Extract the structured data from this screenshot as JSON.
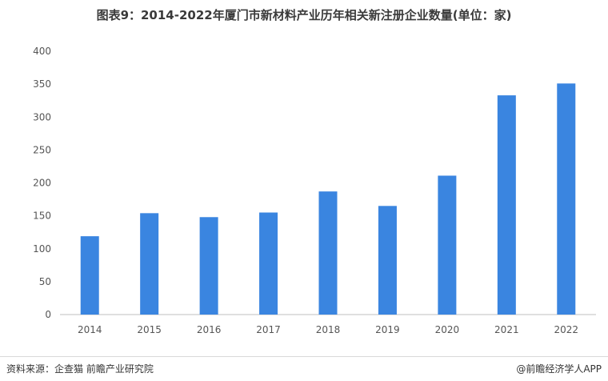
{
  "chart_data": {
    "type": "bar",
    "title": "图表9：2014-2022年厦门市新材料产业历年相关新注册企业数量(单位：家)",
    "categories": [
      "2014",
      "2015",
      "2016",
      "2017",
      "2018",
      "2019",
      "2020",
      "2021",
      "2022"
    ],
    "values": [
      119,
      154,
      148,
      155,
      187,
      165,
      211,
      333,
      351
    ],
    "ylim": [
      0,
      400
    ],
    "yticks": [
      0,
      50,
      100,
      150,
      200,
      250,
      300,
      350,
      400
    ],
    "xlabel": "",
    "ylabel": "",
    "grid": false,
    "bar_color": "#3a85e0"
  },
  "footer": {
    "source": "资料来源：企查猫 前瞻产业研究院",
    "app": "@前瞻经济学人APP",
    "app_icon": "qianzhan-logo-icon"
  }
}
